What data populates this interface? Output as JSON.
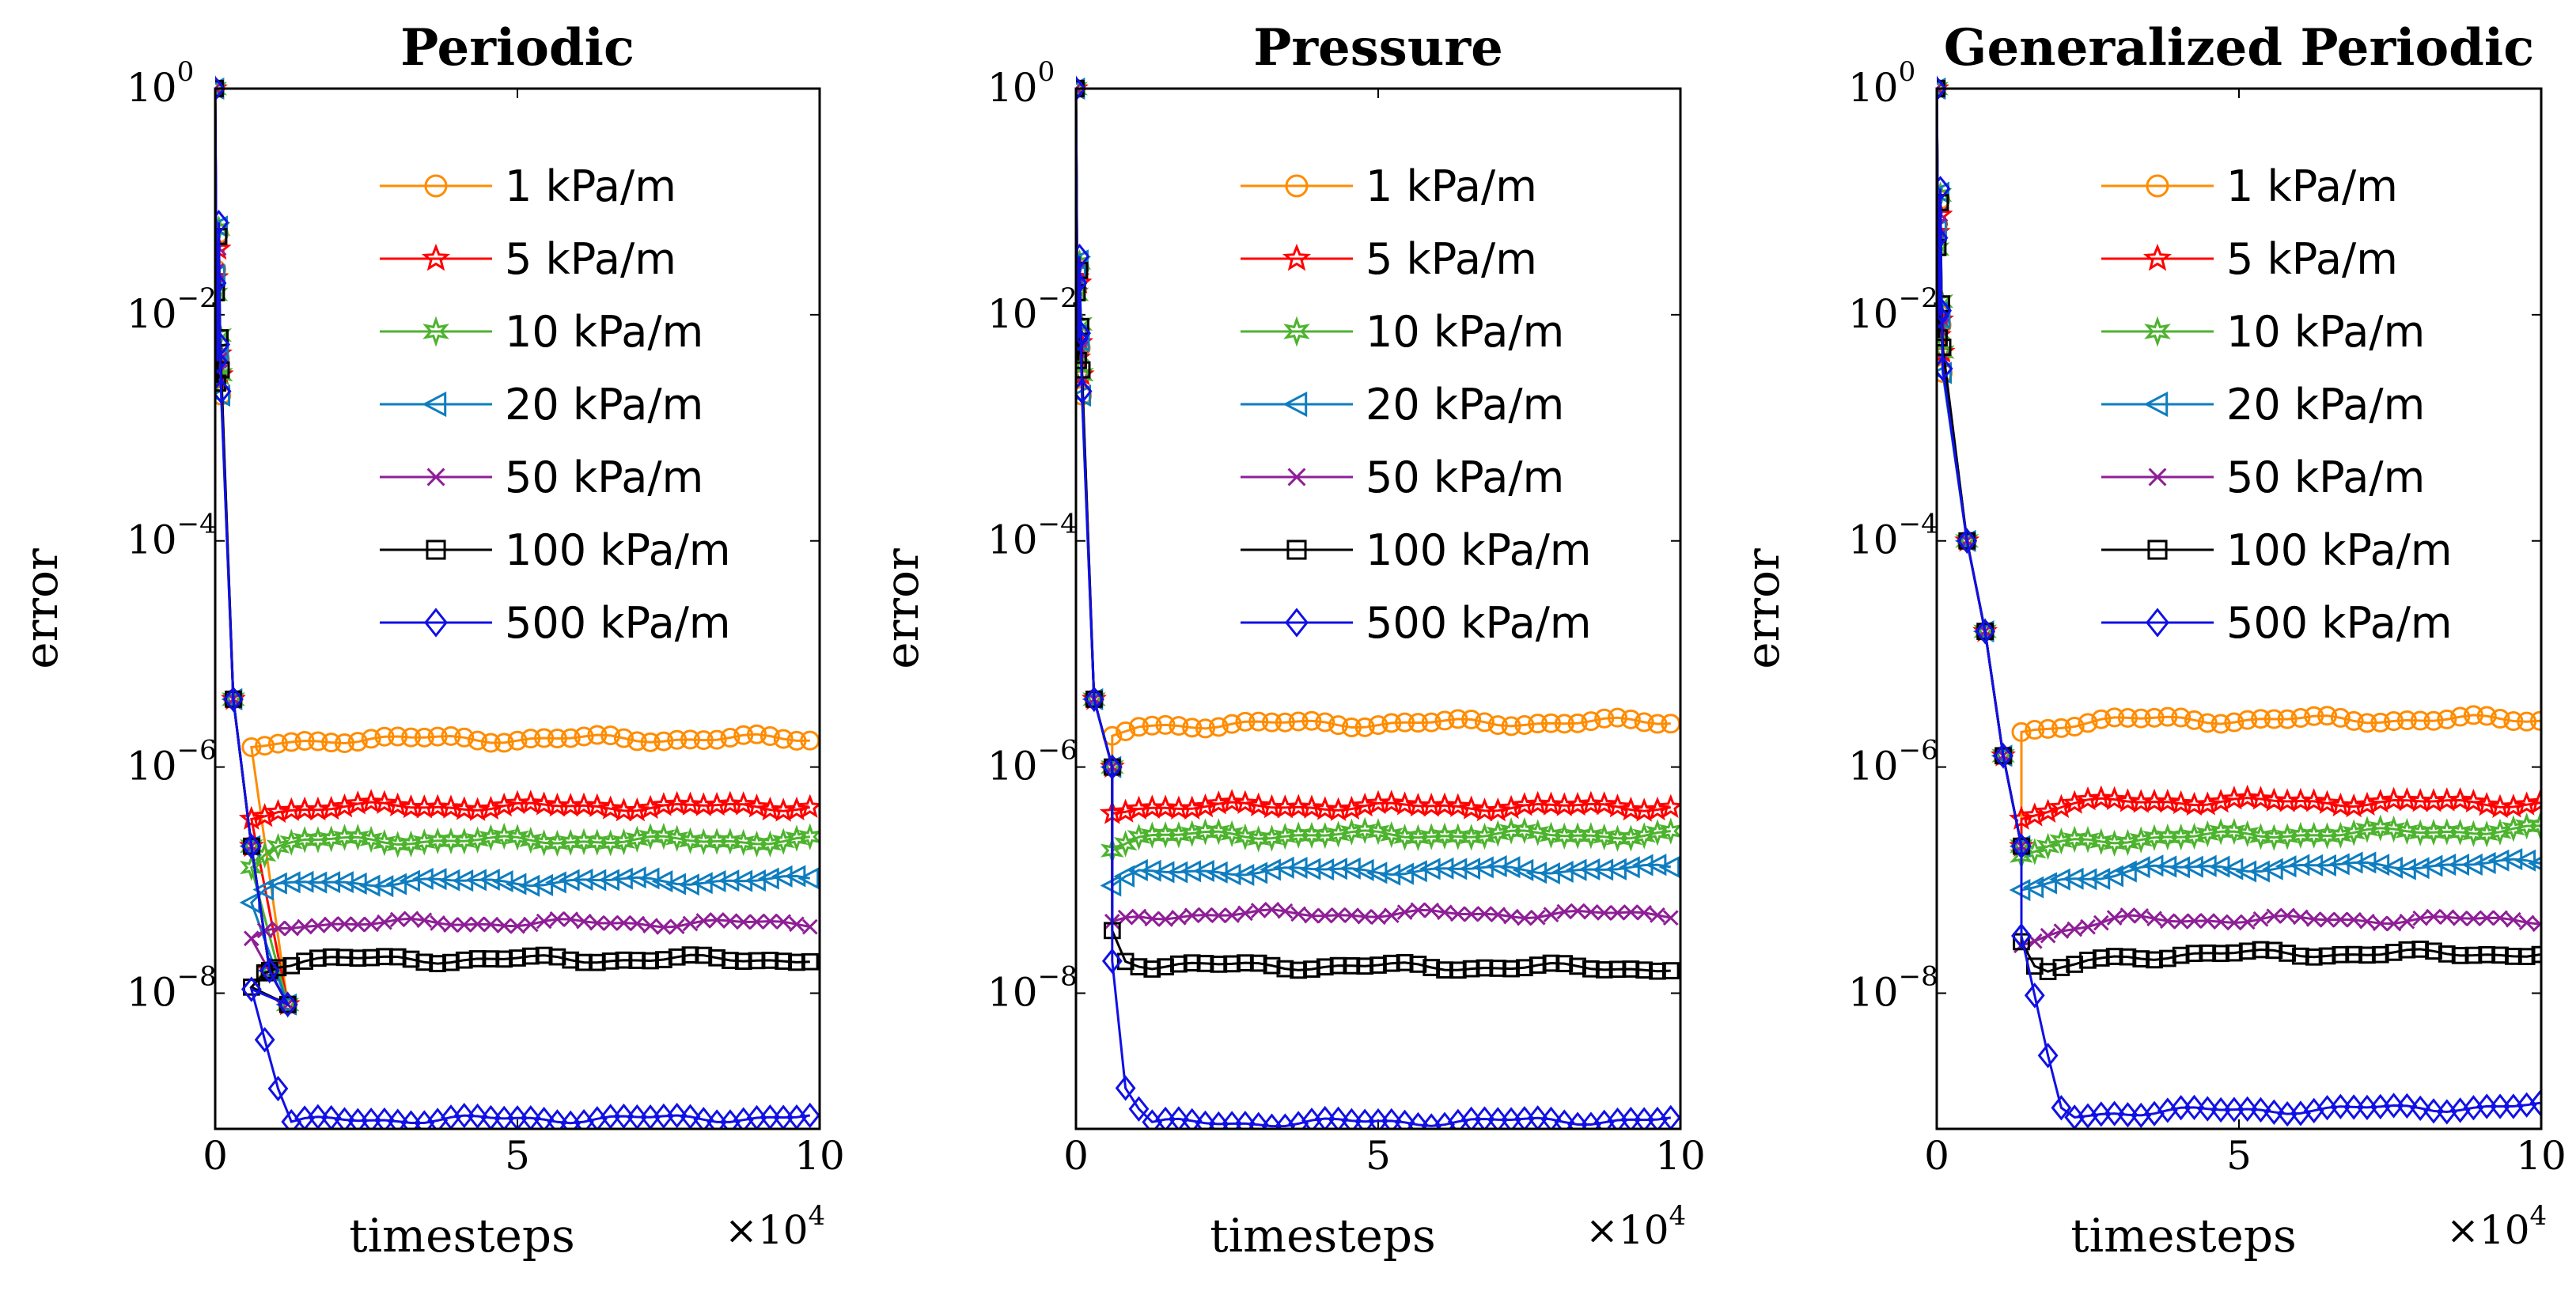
{
  "chart_data": [
    {
      "type": "line",
      "title": "Periodic",
      "xlabel": "timesteps",
      "x_multiplier": "×10",
      "x_multiplier_exp": "4",
      "ylabel": "error",
      "yscale": "log",
      "xlim": [
        0,
        10
      ],
      "ylim_exp": [
        -9.2,
        0
      ],
      "xticks": [
        "0",
        "5",
        "10"
      ],
      "yticks": [
        {
          "base": "10",
          "exp": "0"
        },
        {
          "base": "10",
          "exp": "−2"
        },
        {
          "base": "10",
          "exp": "−4"
        },
        {
          "base": "10",
          "exp": "−6"
        },
        {
          "base": "10",
          "exp": "−8"
        }
      ],
      "x_common": [
        0,
        0.02,
        0.04,
        0.06,
        0.08,
        0.1,
        0.3,
        0.6,
        0.9,
        1.2
      ],
      "spike_log": [
        0,
        -1.7,
        -2.5,
        -1.3,
        -2.3,
        -2.6,
        -5.4,
        -6.7,
        -7.8,
        -8.1
      ],
      "series": [
        {
          "name": "1 kPa/m",
          "color": "#FF8C00",
          "marker": "circle",
          "tail": [
            [
              0.6,
              -5.85
            ],
            [
              1.0,
              -5.8
            ],
            [
              2.0,
              -5.75
            ],
            [
              10.0,
              -5.75
            ]
          ]
        },
        {
          "name": "5 kPa/m",
          "color": "#FF0000",
          "marker": "star",
          "tail": [
            [
              0.6,
              -6.45
            ],
            [
              1.0,
              -6.38
            ],
            [
              2.0,
              -6.35
            ],
            [
              10.0,
              -6.35
            ]
          ]
        },
        {
          "name": "10 kPa/m",
          "color": "#4DB32E",
          "marker": "hexagram",
          "tail": [
            [
              0.6,
              -6.85
            ],
            [
              0.9,
              -6.72
            ],
            [
              1.5,
              -6.65
            ],
            [
              10.0,
              -6.65
            ]
          ]
        },
        {
          "name": "20 kPa/m",
          "color": "#0F7DBF",
          "marker": "triangle-left",
          "tail": [
            [
              0.6,
              -7.2
            ],
            [
              0.9,
              -7.08
            ],
            [
              1.5,
              -7.02
            ],
            [
              10.0,
              -7.0
            ]
          ]
        },
        {
          "name": "50 kPa/m",
          "color": "#8E1E96",
          "marker": "x",
          "tail": [
            [
              0.6,
              -7.55
            ],
            [
              0.9,
              -7.45
            ],
            [
              1.5,
              -7.38
            ],
            [
              10.0,
              -7.38
            ]
          ]
        },
        {
          "name": "100 kPa/m",
          "color": "#000000",
          "marker": "square",
          "tail": [
            [
              0.6,
              -7.95
            ],
            [
              0.9,
              -7.75
            ],
            [
              1.5,
              -7.7
            ],
            [
              10.0,
              -7.7
            ]
          ]
        },
        {
          "name": "500 kPa/m",
          "color": "#1010E6",
          "marker": "diamond",
          "tail": [
            [
              0.6,
              -7.95
            ],
            [
              0.9,
              -8.55
            ],
            [
              1.2,
              -9.15
            ],
            [
              2.0,
              -9.12
            ],
            [
              10.0,
              -9.1
            ]
          ]
        }
      ]
    },
    {
      "type": "line",
      "title": "Pressure",
      "xlabel": "timesteps",
      "x_multiplier": "×10",
      "x_multiplier_exp": "4",
      "ylabel": "error",
      "yscale": "log",
      "xlim": [
        0,
        10
      ],
      "ylim_exp": [
        -9.2,
        0
      ],
      "xticks": [
        "0",
        "5",
        "10"
      ],
      "yticks": [
        {
          "base": "10",
          "exp": "0"
        },
        {
          "base": "10",
          "exp": "−2"
        },
        {
          "base": "10",
          "exp": "−4"
        },
        {
          "base": "10",
          "exp": "−6"
        },
        {
          "base": "10",
          "exp": "−8"
        }
      ],
      "x_common": [
        0,
        0.02,
        0.04,
        0.06,
        0.08,
        0.1,
        0.3,
        0.6
      ],
      "spike_log": [
        0,
        -1.7,
        -2.3,
        -1.6,
        -2.2,
        -2.6,
        -5.4,
        -6.0
      ],
      "series": [
        {
          "name": "1 kPa/m",
          "color": "#FF8C00",
          "marker": "circle",
          "tail": [
            [
              0.6,
              -5.75
            ],
            [
              1.0,
              -5.65
            ],
            [
              2.0,
              -5.62
            ],
            [
              10.0,
              -5.6
            ]
          ]
        },
        {
          "name": "5 kPa/m",
          "color": "#FF0000",
          "marker": "star",
          "tail": [
            [
              0.6,
              -6.4
            ],
            [
              1.0,
              -6.35
            ],
            [
              2.0,
              -6.35
            ],
            [
              10.0,
              -6.35
            ]
          ]
        },
        {
          "name": "10 kPa/m",
          "color": "#4DB32E",
          "marker": "hexagram",
          "tail": [
            [
              0.6,
              -6.7
            ],
            [
              1.0,
              -6.62
            ],
            [
              2.0,
              -6.6
            ],
            [
              10.0,
              -6.6
            ]
          ]
        },
        {
          "name": "20 kPa/m",
          "color": "#0F7DBF",
          "marker": "triangle-left",
          "tail": [
            [
              0.6,
              -7.05
            ],
            [
              1.0,
              -6.95
            ],
            [
              2.0,
              -6.92
            ],
            [
              10.0,
              -6.9
            ]
          ]
        },
        {
          "name": "50 kPa/m",
          "color": "#8E1E96",
          "marker": "x",
          "tail": [
            [
              0.6,
              -7.4
            ],
            [
              1.0,
              -7.33
            ],
            [
              2.0,
              -7.3
            ],
            [
              10.0,
              -7.3
            ]
          ]
        },
        {
          "name": "100 kPa/m",
          "color": "#000000",
          "marker": "square",
          "tail": [
            [
              0.6,
              -7.45
            ],
            [
              0.8,
              -7.7
            ],
            [
              1.2,
              -7.75
            ],
            [
              10.0,
              -7.78
            ]
          ]
        },
        {
          "name": "500 kPa/m",
          "color": "#1010E6",
          "marker": "diamond",
          "tail": [
            [
              0.6,
              -7.7
            ],
            [
              0.8,
              -8.8
            ],
            [
              1.2,
              -9.15
            ],
            [
              2.0,
              -9.15
            ],
            [
              10.0,
              -9.12
            ]
          ]
        }
      ]
    },
    {
      "type": "line",
      "title": "Generalized Periodic",
      "xlabel": "timesteps",
      "x_multiplier": "×10",
      "x_multiplier_exp": "4",
      "ylabel": "error",
      "yscale": "log",
      "xlim": [
        0,
        10
      ],
      "ylim_exp": [
        -9.2,
        0
      ],
      "xticks": [
        "0",
        "5",
        "10"
      ],
      "yticks": [
        {
          "base": "10",
          "exp": "0"
        },
        {
          "base": "10",
          "exp": "−2"
        },
        {
          "base": "10",
          "exp": "−4"
        },
        {
          "base": "10",
          "exp": "−6"
        },
        {
          "base": "10",
          "exp": "−8"
        }
      ],
      "x_common": [
        0,
        0.02,
        0.04,
        0.06,
        0.08,
        0.1,
        0.5,
        0.8,
        1.1,
        1.4
      ],
      "spike_log": [
        0,
        -1.3,
        -2.1,
        -1.0,
        -2.0,
        -2.4,
        -4.0,
        -4.8,
        -5.9,
        -6.7
      ],
      "series": [
        {
          "name": "1 kPa/m",
          "color": "#FF8C00",
          "marker": "circle",
          "tail": [
            [
              1.4,
              -5.7
            ],
            [
              2.0,
              -5.62
            ],
            [
              3.0,
              -5.58
            ],
            [
              10.0,
              -5.58
            ]
          ]
        },
        {
          "name": "5 kPa/m",
          "color": "#FF0000",
          "marker": "star",
          "tail": [
            [
              1.4,
              -6.45
            ],
            [
              2.0,
              -6.35
            ],
            [
              3.0,
              -6.3
            ],
            [
              10.0,
              -6.32
            ]
          ]
        },
        {
          "name": "10 kPa/m",
          "color": "#4DB32E",
          "marker": "hexagram",
          "tail": [
            [
              1.4,
              -6.8
            ],
            [
              2.0,
              -6.68
            ],
            [
              3.5,
              -6.62
            ],
            [
              10.0,
              -6.55
            ]
          ]
        },
        {
          "name": "20 kPa/m",
          "color": "#0F7DBF",
          "marker": "triangle-left",
          "tail": [
            [
              1.4,
              -7.1
            ],
            [
              2.0,
              -7.0
            ],
            [
              3.5,
              -6.9
            ],
            [
              10.0,
              -6.85
            ]
          ]
        },
        {
          "name": "50 kPa/m",
          "color": "#8E1E96",
          "marker": "x",
          "tail": [
            [
              1.4,
              -7.55
            ],
            [
              2.0,
              -7.45
            ],
            [
              3.0,
              -7.35
            ],
            [
              10.0,
              -7.35
            ]
          ]
        },
        {
          "name": "100 kPa/m",
          "color": "#000000",
          "marker": "square",
          "tail": [
            [
              1.4,
              -7.52
            ],
            [
              1.7,
              -7.85
            ],
            [
              2.5,
              -7.72
            ],
            [
              4.0,
              -7.65
            ],
            [
              10.0,
              -7.65
            ]
          ]
        },
        {
          "name": "500 kPa/m",
          "color": "#1010E6",
          "marker": "diamond",
          "tail": [
            [
              1.4,
              -7.52
            ],
            [
              1.8,
              -8.5
            ],
            [
              2.1,
              -9.1
            ],
            [
              3.0,
              -9.05
            ],
            [
              10.0,
              -9.0
            ]
          ]
        }
      ]
    }
  ]
}
